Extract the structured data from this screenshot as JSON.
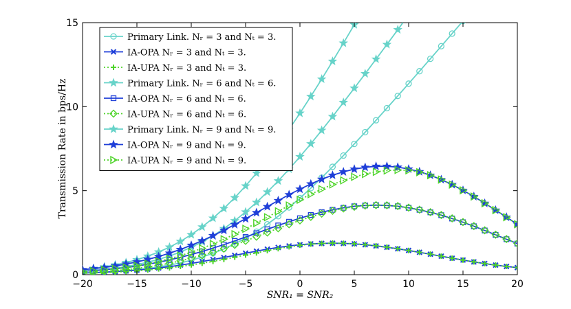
{
  "chart_data": {
    "type": "line",
    "title": "",
    "xlabel": "SNR₁ = SNR₂",
    "ylabel": "Transmission Rate in bps/Hz",
    "xlim": [
      -20,
      20
    ],
    "ylim": [
      0,
      15
    ],
    "xticks": [
      -20,
      -15,
      -10,
      -5,
      0,
      5,
      10,
      15,
      20
    ],
    "yticks": [
      0,
      5,
      10,
      15
    ],
    "grid": false,
    "legend_position": "top-left",
    "x": [
      -20,
      -19,
      -18,
      -17,
      -16,
      -15,
      -14,
      -13,
      -12,
      -11,
      -10,
      -9,
      -8,
      -7,
      -6,
      -5,
      -4,
      -3,
      -2,
      -1,
      0,
      1,
      2,
      3,
      4,
      5,
      6,
      7,
      8,
      9,
      10,
      11,
      12,
      13,
      14,
      15,
      16,
      17,
      18,
      19,
      20
    ],
    "series": [
      {
        "name": "Primary Link. Nᵣ = 3 and Nₜ = 3.",
        "color": "#67d3c9",
        "marker": "circle",
        "values": [
          0.1,
          0.12,
          0.15,
          0.19,
          0.24,
          0.3,
          0.37,
          0.46,
          0.57,
          0.7,
          0.86,
          1.05,
          1.27,
          1.53,
          1.83,
          2.17,
          2.56,
          3.0,
          3.48,
          4.0,
          4.56,
          5.15,
          5.77,
          6.42,
          7.09,
          7.78,
          8.48,
          9.19,
          9.91,
          10.64,
          11.37,
          12.11,
          12.85,
          13.6,
          14.35,
          15.1,
          null,
          null,
          null,
          null,
          null
        ]
      },
      {
        "name": "IA-OPA Nᵣ = 3 and Nₜ = 3.",
        "color": "#1f3fd8",
        "marker": "x",
        "values": [
          0.1,
          0.12,
          0.15,
          0.18,
          0.22,
          0.27,
          0.33,
          0.4,
          0.48,
          0.57,
          0.67,
          0.78,
          0.9,
          1.02,
          1.15,
          1.28,
          1.4,
          1.52,
          1.62,
          1.71,
          1.78,
          1.83,
          1.86,
          1.87,
          1.86,
          1.83,
          1.78,
          1.71,
          1.63,
          1.54,
          1.44,
          1.33,
          1.22,
          1.1,
          0.98,
          0.87,
          0.76,
          0.66,
          0.57,
          0.49,
          0.42
        ]
      },
      {
        "name": "IA-UPA Nᵣ = 3 and Nₜ = 3.",
        "color": "#4fd42b",
        "marker": "plus",
        "values": [
          0.08,
          0.1,
          0.12,
          0.15,
          0.19,
          0.23,
          0.28,
          0.34,
          0.41,
          0.49,
          0.58,
          0.68,
          0.79,
          0.91,
          1.04,
          1.17,
          1.3,
          1.43,
          1.55,
          1.66,
          1.75,
          1.82,
          1.86,
          1.88,
          1.87,
          1.84,
          1.79,
          1.72,
          1.64,
          1.55,
          1.44,
          1.33,
          1.22,
          1.1,
          0.98,
          0.87,
          0.76,
          0.66,
          0.57,
          0.49,
          0.42
        ]
      },
      {
        "name": "Primary Link. Nᵣ = 6 and Nₜ = 6.",
        "color": "#67d3c9",
        "marker": "star",
        "values": [
          0.2,
          0.25,
          0.31,
          0.39,
          0.48,
          0.6,
          0.74,
          0.91,
          1.11,
          1.35,
          1.63,
          1.95,
          2.32,
          2.74,
          3.21,
          3.73,
          4.3,
          4.92,
          5.58,
          6.28,
          7.02,
          7.79,
          8.59,
          9.41,
          10.25,
          11.1,
          11.96,
          12.83,
          13.7,
          14.58,
          null,
          null,
          null,
          null,
          null,
          null,
          null,
          null,
          null,
          null,
          null
        ]
      },
      {
        "name": "IA-OPA Nᵣ = 6 and Nₜ = 6.",
        "color": "#1f3fd8",
        "marker": "square",
        "values": [
          0.2,
          0.24,
          0.29,
          0.35,
          0.42,
          0.51,
          0.62,
          0.74,
          0.88,
          1.03,
          1.2,
          1.38,
          1.58,
          1.79,
          2.01,
          2.24,
          2.47,
          2.7,
          2.93,
          3.15,
          3.36,
          3.55,
          3.72,
          3.86,
          3.98,
          4.07,
          4.12,
          4.14,
          4.12,
          4.07,
          3.98,
          3.86,
          3.71,
          3.54,
          3.34,
          3.12,
          2.88,
          2.63,
          2.37,
          2.11,
          1.85
        ]
      },
      {
        "name": "IA-UPA Nᵣ = 6 and Nₜ = 6.",
        "color": "#4fd42b",
        "marker": "diamond",
        "values": [
          0.12,
          0.15,
          0.19,
          0.24,
          0.3,
          0.37,
          0.46,
          0.56,
          0.68,
          0.82,
          0.98,
          1.15,
          1.34,
          1.55,
          1.77,
          2.01,
          2.26,
          2.51,
          2.76,
          3.0,
          3.23,
          3.44,
          3.63,
          3.8,
          3.94,
          4.04,
          4.11,
          4.14,
          4.13,
          4.08,
          3.99,
          3.87,
          3.72,
          3.55,
          3.35,
          3.13,
          2.89,
          2.64,
          2.38,
          2.12,
          1.86
        ]
      },
      {
        "name": "Primary Link. Nᵣ = 9 and Nₜ = 9.",
        "color": "#67d3c9",
        "marker": "star",
        "values": [
          0.3,
          0.37,
          0.46,
          0.58,
          0.72,
          0.89,
          1.1,
          1.35,
          1.64,
          1.98,
          2.38,
          2.84,
          3.36,
          3.94,
          4.58,
          5.28,
          6.04,
          6.86,
          7.73,
          8.65,
          9.61,
          10.61,
          11.64,
          12.7,
          13.78,
          14.88,
          null,
          null,
          null,
          null,
          null,
          null,
          null,
          null,
          null,
          null,
          null,
          null,
          null,
          null,
          null
        ]
      },
      {
        "name": "IA-OPA Nᵣ = 9 and Nₜ = 9.",
        "color": "#1f3fd8",
        "marker": "star",
        "values": [
          0.3,
          0.36,
          0.43,
          0.52,
          0.63,
          0.76,
          0.91,
          1.08,
          1.28,
          1.5,
          1.75,
          2.02,
          2.32,
          2.64,
          2.98,
          3.33,
          3.69,
          4.05,
          4.41,
          4.76,
          5.09,
          5.4,
          5.68,
          5.92,
          6.12,
          6.28,
          6.39,
          6.45,
          6.45,
          6.4,
          6.29,
          6.13,
          5.92,
          5.66,
          5.36,
          5.02,
          4.65,
          4.25,
          3.84,
          3.42,
          3.0
        ]
      },
      {
        "name": "IA-UPA Nᵣ = 9 and Nₜ = 9.",
        "color": "#4fd42b",
        "marker": "triangle-right",
        "values": [
          0.18,
          0.22,
          0.28,
          0.35,
          0.43,
          0.53,
          0.65,
          0.79,
          0.95,
          1.13,
          1.34,
          1.57,
          1.83,
          2.11,
          2.41,
          2.73,
          3.07,
          3.42,
          3.77,
          4.12,
          4.46,
          4.79,
          5.09,
          5.37,
          5.61,
          5.82,
          5.99,
          6.12,
          6.2,
          6.23,
          6.21,
          6.1,
          5.92,
          5.66,
          5.36,
          5.02,
          4.65,
          4.25,
          3.84,
          3.42,
          3.0
        ]
      }
    ]
  }
}
